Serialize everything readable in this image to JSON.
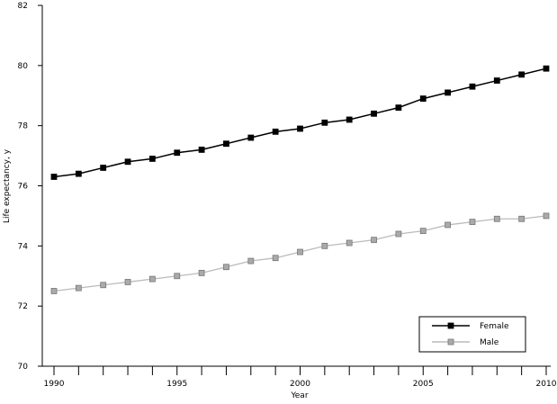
{
  "chart_data": {
    "type": "line",
    "title": "",
    "xlabel": "Year",
    "ylabel": "Life expectancy, y",
    "xlim": [
      1990,
      2010
    ],
    "ylim": [
      70,
      82
    ],
    "xticks": [
      1990,
      1995,
      2000,
      2005,
      2010
    ],
    "yticks": [
      70,
      72,
      74,
      76,
      78,
      80,
      82
    ],
    "grid": false,
    "legend_position": "bottom-right",
    "x": [
      1990,
      1991,
      1992,
      1993,
      1994,
      1995,
      1996,
      1997,
      1998,
      1999,
      2000,
      2001,
      2002,
      2003,
      2004,
      2005,
      2006,
      2007,
      2008,
      2009,
      2010
    ],
    "series": [
      {
        "name": "Female",
        "color": "#000000",
        "marker_color": "#000000",
        "values": [
          76.3,
          76.4,
          76.6,
          76.8,
          76.9,
          77.1,
          77.2,
          77.4,
          77.6,
          77.8,
          77.9,
          78.1,
          78.2,
          78.4,
          78.6,
          78.9,
          79.1,
          79.3,
          79.5,
          79.7,
          79.9
        ]
      },
      {
        "name": "Male",
        "color": "#bbbbbb",
        "marker_color": "#aaaaaa",
        "values": [
          72.5,
          72.6,
          72.7,
          72.8,
          72.9,
          73.0,
          73.1,
          73.3,
          73.5,
          73.6,
          73.8,
          74.0,
          74.1,
          74.2,
          74.4,
          74.5,
          74.7,
          74.8,
          74.9,
          74.9,
          75.0
        ]
      }
    ]
  }
}
